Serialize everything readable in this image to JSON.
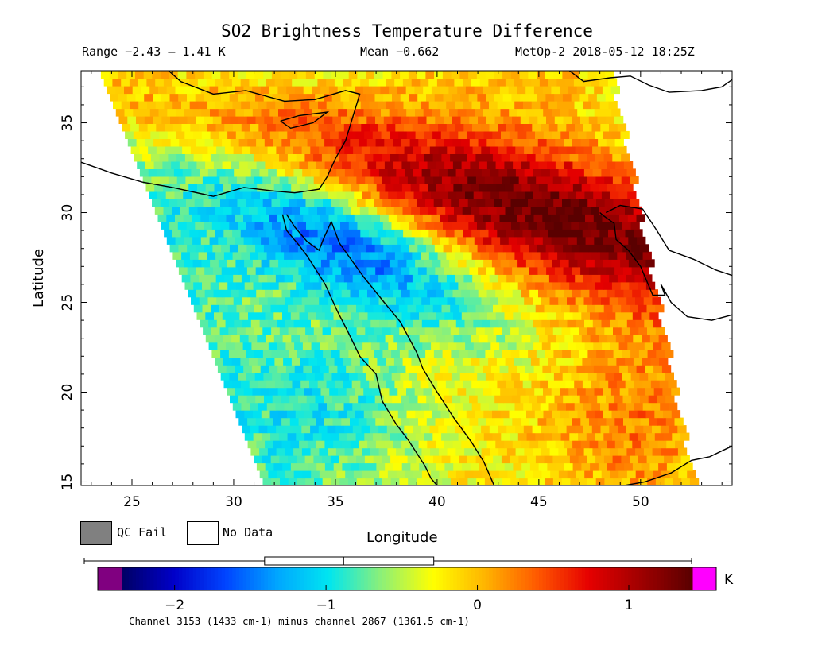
{
  "header": {
    "title": "SO2 Brightness Temperature Difference",
    "range": "Range −2.43 – 1.41 K",
    "mean": "Mean −0.662",
    "satellite_time": "MetOp-2 2018-05-12 18:25Z"
  },
  "map": {
    "xlabel": "Longitude",
    "ylabel": "Latitude",
    "lon_range": [
      22.5,
      54.5
    ],
    "lat_range": [
      14.8,
      37.9
    ],
    "x_ticks": [
      25,
      30,
      35,
      40,
      45,
      50
    ],
    "y_ticks": [
      15,
      20,
      25,
      30,
      35
    ],
    "swath_corners": {
      "top_left": [
        23.4,
        37.9
      ],
      "top_right": [
        48.4,
        37.9
      ],
      "bottom_left": [
        31.5,
        14.8
      ],
      "bottom_right": [
        52.5,
        14.8
      ]
    },
    "features": {
      "positive_band": "Libya / Levant / Iraq / Persian Gulf, up to ~1 K",
      "negative_band": "Nile valley, Sinai and Red Sea, down to ~-2 K"
    },
    "coastline_color": "#000000"
  },
  "legend": {
    "qc_fail_label": "QC Fail",
    "qc_fail_color": "#808080",
    "no_data_label": "No Data",
    "no_data_color": "#ffffff"
  },
  "colorbar": {
    "ticks": [
      -2,
      -1,
      0,
      1
    ],
    "unit": "K",
    "vmin": -2.35,
    "vmax": 1.42,
    "under_color": "#800080",
    "over_color": "#ff00ff",
    "stops": [
      "#000064",
      "#0000c8",
      "#0044ff",
      "#00a6ff",
      "#00e6f0",
      "#8cf078",
      "#ffff00",
      "#ffb400",
      "#ff5a00",
      "#e60000",
      "#a00000",
      "#5a0000"
    ],
    "caption": "Channel 3153 (1433 cm-1) minus channel 2867 (1361.5 cm-1)",
    "boxplot": {
      "whisker_low": -2.43,
      "q1": -1.29,
      "median": -0.79,
      "q3": -0.22,
      "whisker_high": 1.41
    }
  }
}
